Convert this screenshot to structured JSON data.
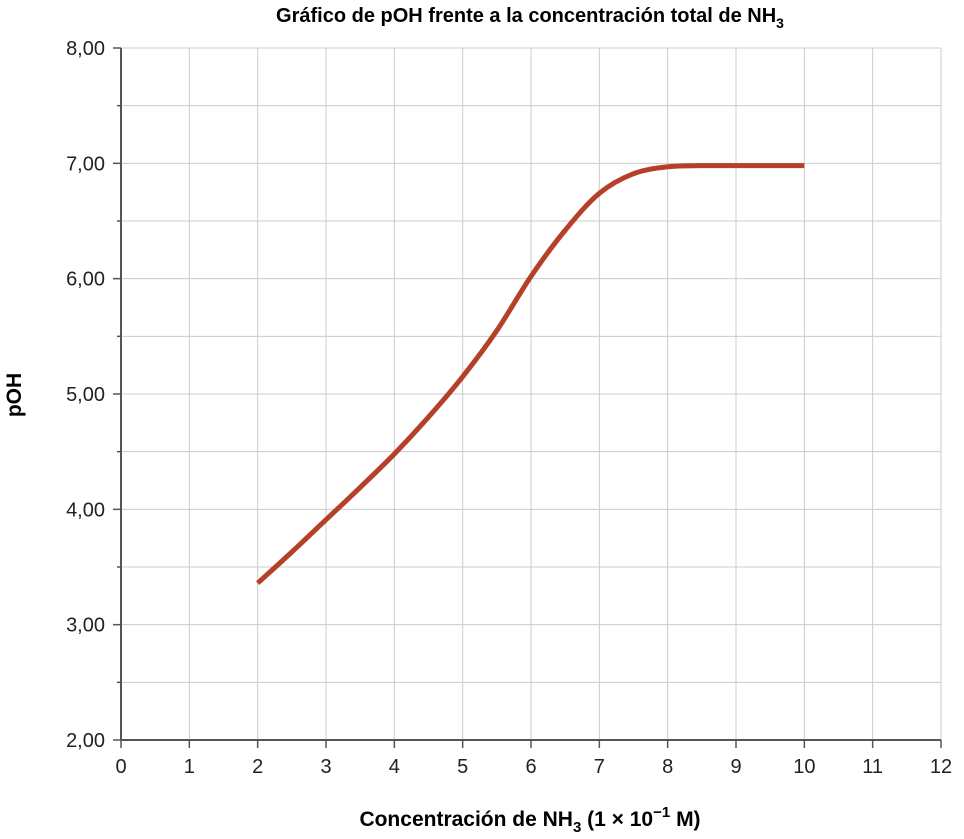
{
  "chart_data": {
    "type": "line",
    "title": "Gráfico de pOH frente a la concentración total de NH",
    "title_sub": "3",
    "xlabel_pre": "Concentración de NH",
    "xlabel_sub": "3",
    "xlabel_mid": " (1 × 10",
    "xlabel_sup": "−1",
    "xlabel_post": " M)",
    "ylabel": "pOH",
    "xlim": [
      0,
      12
    ],
    "ylim": [
      2,
      8
    ],
    "x_ticks": [
      0,
      1,
      2,
      3,
      4,
      5,
      6,
      7,
      8,
      9,
      10,
      11,
      12
    ],
    "x_tick_labels": [
      "0",
      "1",
      "2",
      "3",
      "4",
      "5",
      "6",
      "7",
      "8",
      "9",
      "10",
      "11",
      "12"
    ],
    "y_ticks": [
      2,
      3,
      4,
      5,
      6,
      7,
      8
    ],
    "y_tick_labels": [
      "2,00",
      "3,00",
      "4,00",
      "5,00",
      "6,00",
      "7,00",
      "8,00"
    ],
    "y_minor_step": 0.5,
    "grid": true,
    "series": [
      {
        "color": "#b5402a",
        "x": [
          2.0,
          2.5,
          3.0,
          3.5,
          4.0,
          4.5,
          5.0,
          5.5,
          6.0,
          6.5,
          7.0,
          7.5,
          8.0,
          8.5,
          9.0,
          9.5,
          10.0
        ],
        "y": [
          3.36,
          3.63,
          3.91,
          4.19,
          4.48,
          4.8,
          5.15,
          5.55,
          6.02,
          6.42,
          6.74,
          6.91,
          6.97,
          6.98,
          6.98,
          6.98,
          6.98
        ]
      }
    ]
  }
}
